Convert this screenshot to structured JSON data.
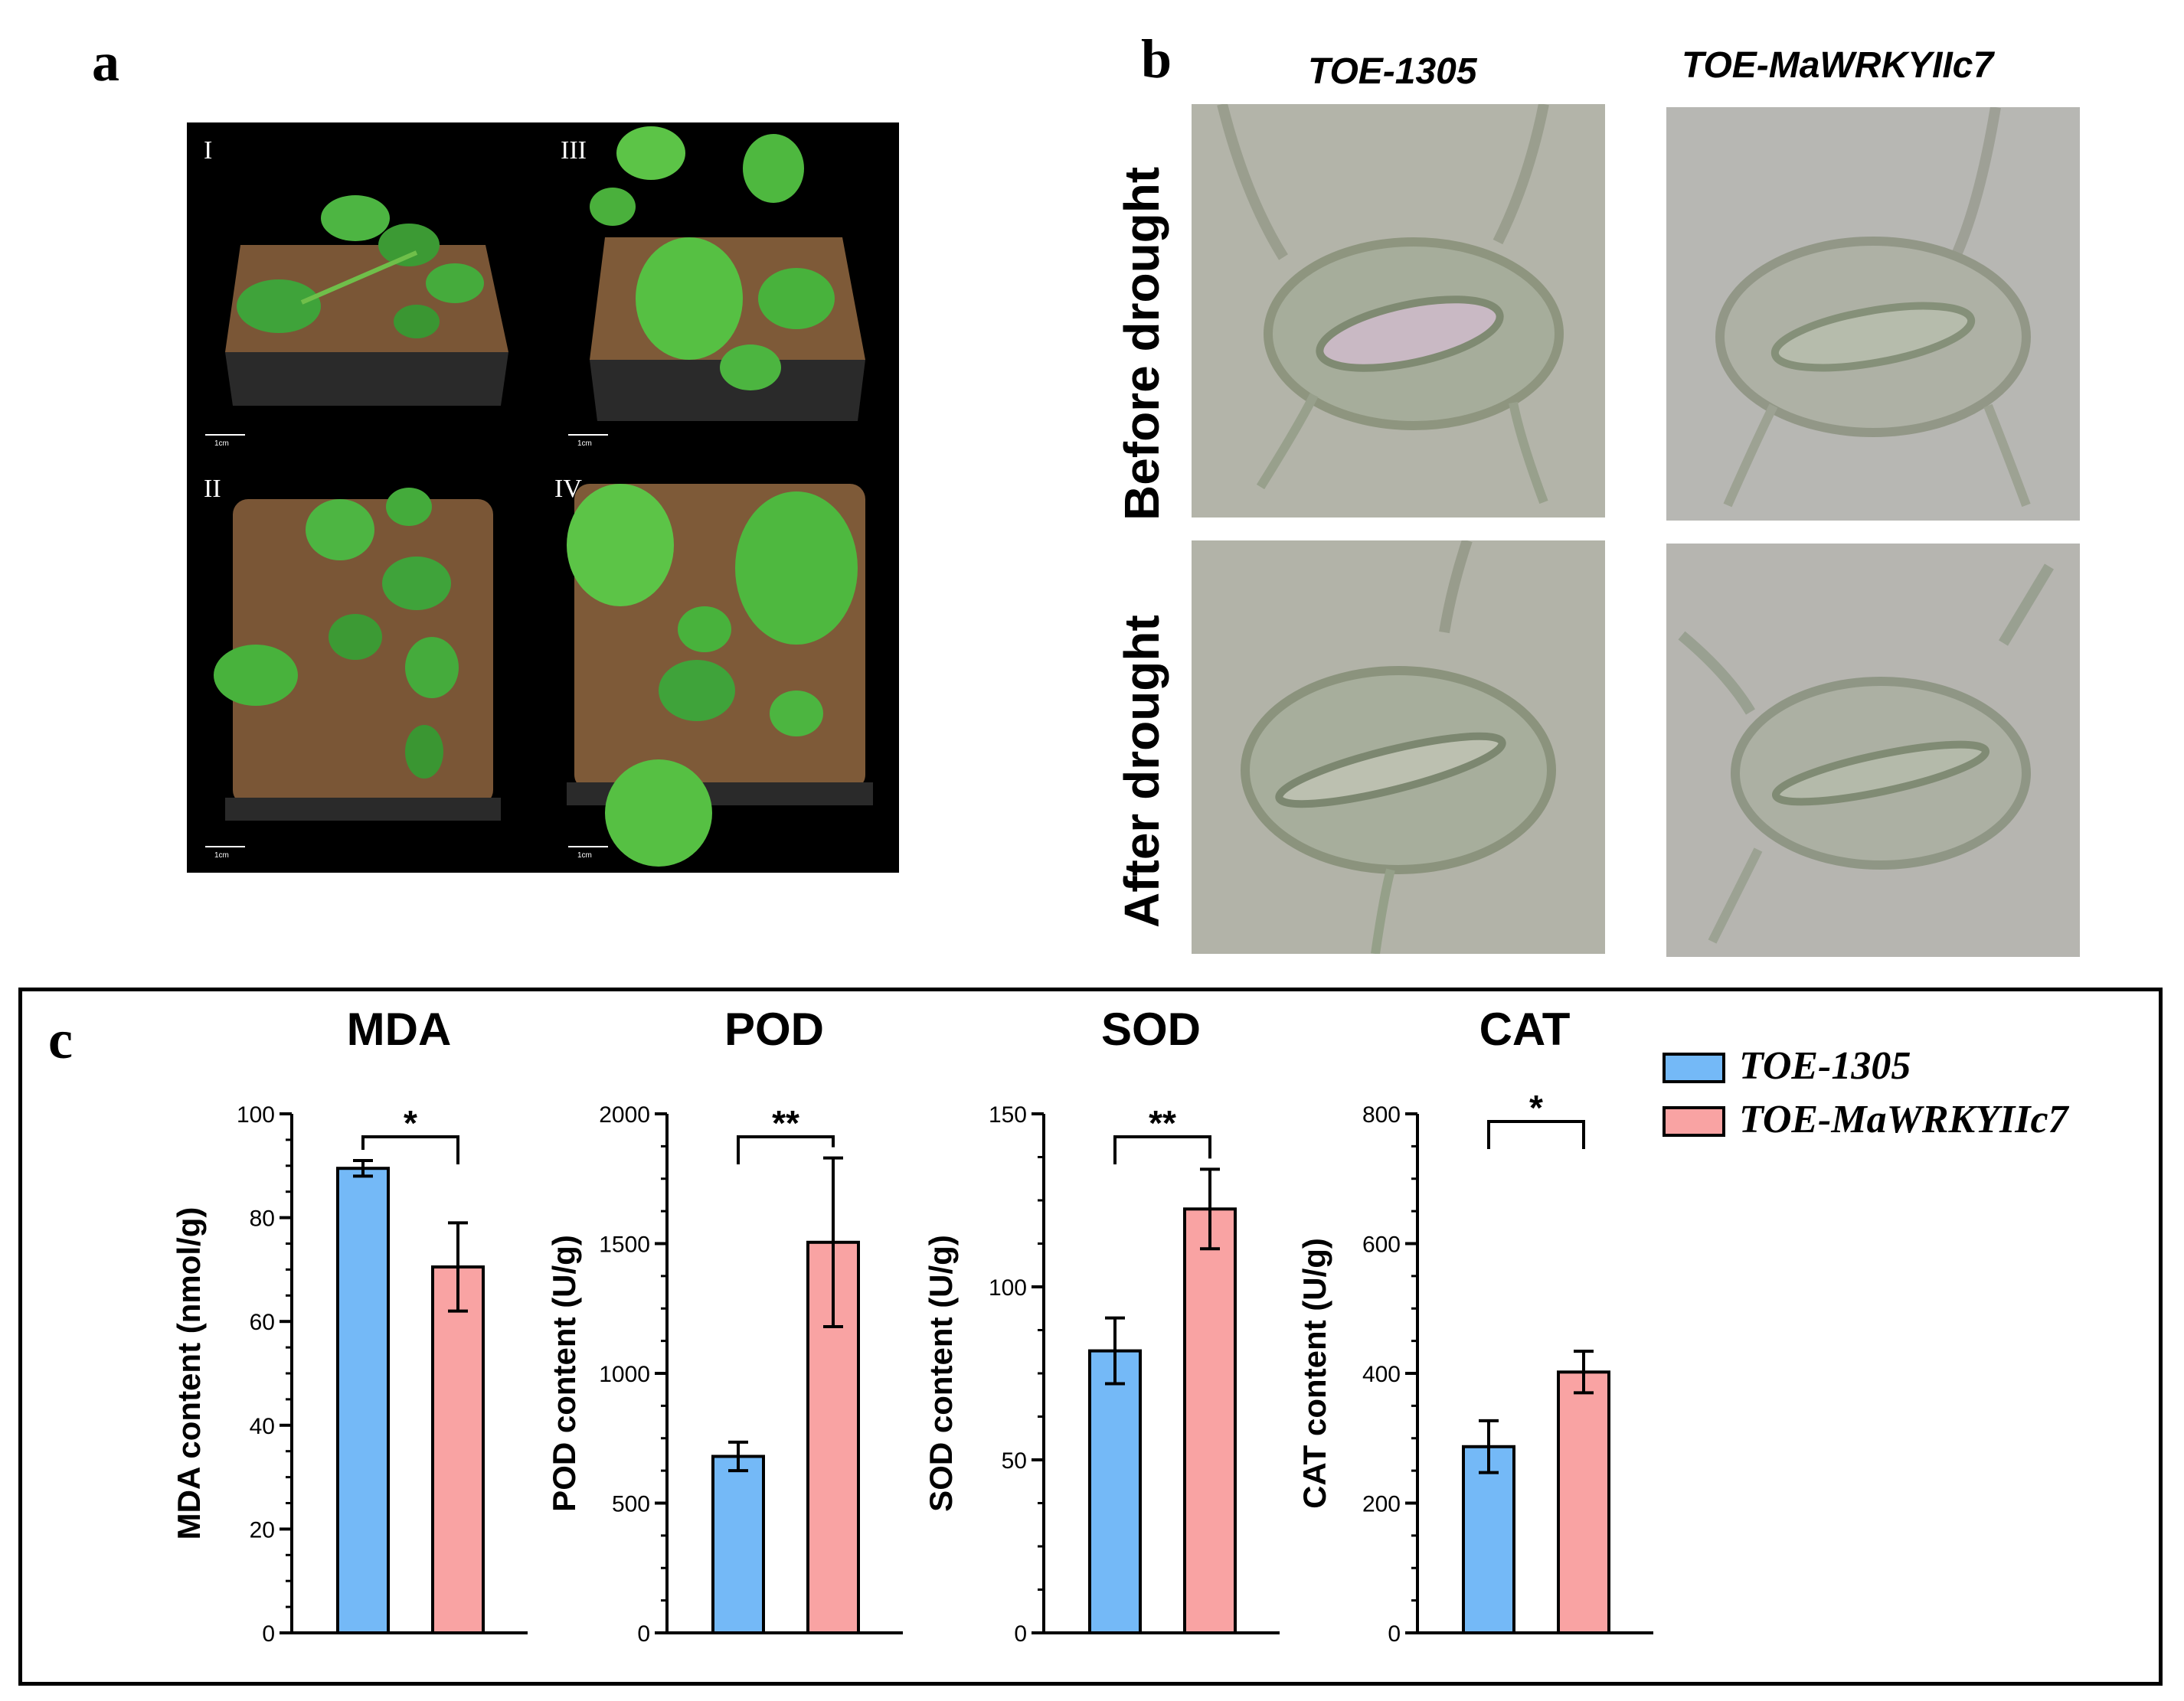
{
  "panel_a": {
    "letter": "a",
    "tiles": [
      {
        "label": "I",
        "scale": "1cm"
      },
      {
        "label": "III",
        "scale": "1cm"
      },
      {
        "label": "II",
        "scale": "1cm"
      },
      {
        "label": "IV",
        "scale": "1cm"
      }
    ]
  },
  "panel_b": {
    "letter": "b",
    "columns": [
      "TOE-1305",
      "TOE-MaWRKYIIc7"
    ],
    "rows": [
      "Before drought",
      "After drought"
    ]
  },
  "panel_c": {
    "letter": "c",
    "legend": [
      {
        "name": "TOE-1305",
        "color": "#74b9f7"
      },
      {
        "name": "TOE-MaWRKYIIc7",
        "color": "#f9a3a3"
      }
    ]
  },
  "chart_data": [
    {
      "type": "bar",
      "title": "MDA",
      "ylabel": "MDA content (nmol/g)",
      "ylim": [
        0,
        100
      ],
      "yticks": [
        "0",
        "20",
        "40",
        "60",
        "80",
        "100"
      ],
      "ytick_values": [
        0,
        20,
        40,
        60,
        80,
        100
      ],
      "series": [
        {
          "name": "TOE-1305",
          "value": 89.5,
          "error": 1.5
        },
        {
          "name": "TOE-MaWRKYIIc7",
          "value": 70.5,
          "error": 8.5
        }
      ],
      "significance": "*"
    },
    {
      "type": "bar",
      "title": "POD",
      "ylabel": "POD content (U/g)",
      "ylim": [
        0,
        2000
      ],
      "yticks": [
        "0",
        "500",
        "1000",
        "1500",
        "2000"
      ],
      "ytick_values": [
        0,
        500,
        1000,
        1500,
        2000
      ],
      "series": [
        {
          "name": "TOE-1305",
          "value": 680,
          "error": 55
        },
        {
          "name": "TOE-MaWRKYIIc7",
          "value": 1505,
          "error": 325
        }
      ],
      "significance": "**"
    },
    {
      "type": "bar",
      "title": "SOD",
      "ylabel": "SOD content (U/g)",
      "ylim": [
        0,
        150
      ],
      "yticks": [
        "0",
        "50",
        "100",
        "150"
      ],
      "ytick_values": [
        0,
        50,
        100,
        150
      ],
      "series": [
        {
          "name": "TOE-1305",
          "value": 81.5,
          "error": 9.5
        },
        {
          "name": "TOE-MaWRKYIIc7",
          "value": 122.5,
          "error": 11.5
        }
      ],
      "significance": "**"
    },
    {
      "type": "bar",
      "title": "CAT",
      "ylabel": "CAT content (U/g)",
      "ylim": [
        0,
        800
      ],
      "yticks": [
        "0",
        "200",
        "400",
        "600",
        "800"
      ],
      "ytick_values": [
        0,
        200,
        400,
        600,
        800
      ],
      "series": [
        {
          "name": "TOE-1305",
          "value": 287,
          "error": 40
        },
        {
          "name": "TOE-MaWRKYIIc7",
          "value": 402,
          "error": 32
        }
      ],
      "significance": "*"
    }
  ]
}
